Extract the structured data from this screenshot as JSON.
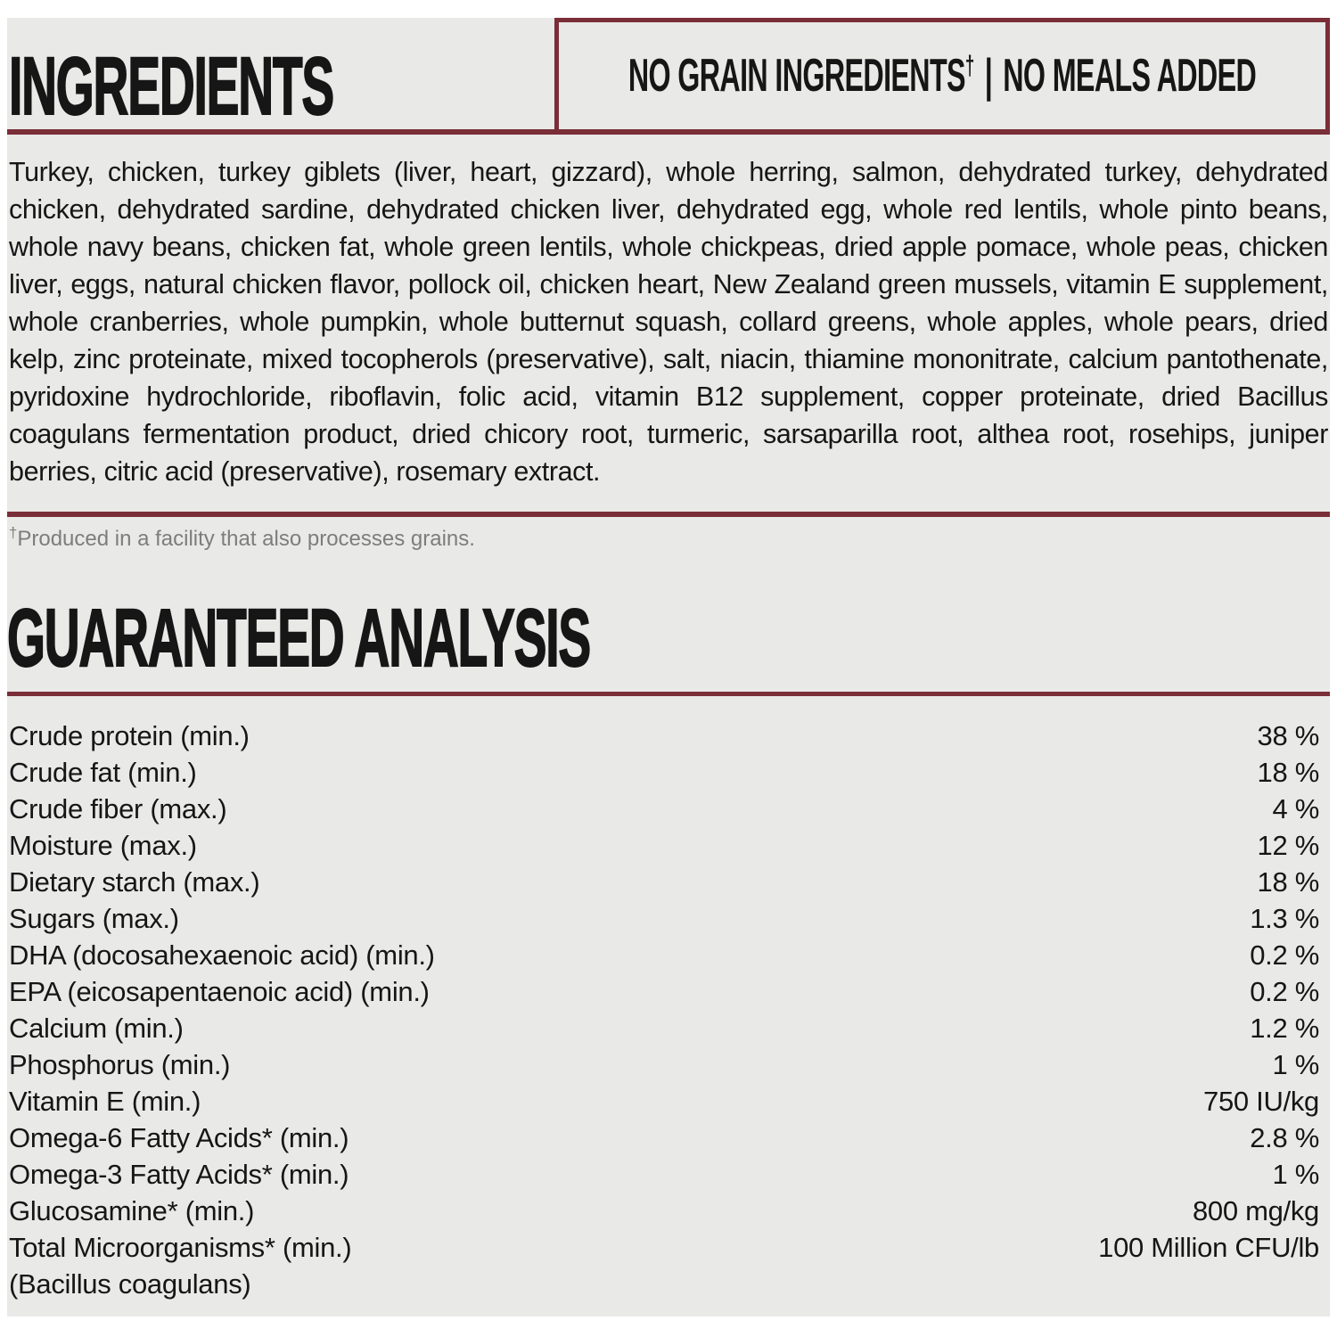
{
  "page": {
    "accent_color": "#7a2e37",
    "panel_background": "#e9e9e7",
    "text_color": "#161616",
    "footnote_color": "#7d7d7d",
    "page_background": "#ffffff"
  },
  "header": {
    "title": "INGREDIENTS",
    "badge": {
      "text_left": "NO GRAIN INGREDIENTS",
      "dagger": "†",
      "separator": "|",
      "text_right": "NO MEALS ADDED"
    }
  },
  "ingredients": {
    "text": "Turkey, chicken, turkey giblets (liver, heart, gizzard), whole herring, salmon, dehydrated turkey, dehydrated chicken, dehydrated sardine, dehydrated chicken liver, dehydrated egg, whole red lentils, whole pinto beans, whole navy beans, chicken fat, whole green lentils, whole chickpeas, dried apple pomace, whole peas, chicken liver, eggs, natural chicken flavor, pollock oil, chicken heart, New Zealand green mussels, vitamin E supplement, whole cranberries, whole pumpkin, whole butternut squash, collard greens, whole apples, whole pears, dried kelp, zinc proteinate, mixed tocopherols (preservative), salt, niacin, thiamine mononitrate, calcium pantothenate, pyridoxine hydrochloride, riboflavin, folic acid, vitamin B12 supplement, copper proteinate, dried Bacillus coagulans fermentation product, dried chicory root, turmeric, sarsaparilla root, althea root, rosehips, juniper berries, citric acid (preservative), rosemary extract."
  },
  "footnote": {
    "dagger": "†",
    "text": "Produced in a facility that also processes grains."
  },
  "analysis": {
    "title": "GUARANTEED ANALYSIS",
    "rows": [
      {
        "label": "Crude protein (min.)",
        "value": "38 %"
      },
      {
        "label": "Crude fat (min.)",
        "value": "18 %"
      },
      {
        "label": "Crude fiber (max.)",
        "value": "4 %"
      },
      {
        "label": "Moisture (max.)",
        "value": "12 %"
      },
      {
        "label": "Dietary starch (max.)",
        "value": "18 %"
      },
      {
        "label": "Sugars (max.)",
        "value": "1.3 %"
      },
      {
        "label": "DHA (docosahexaenoic acid) (min.)",
        "value": "0.2 %"
      },
      {
        "label": "EPA (eicosapentaenoic acid) (min.)",
        "value": "0.2 %"
      },
      {
        "label": "Calcium (min.)",
        "value": "1.2 %"
      },
      {
        "label": "Phosphorus (min.)",
        "value": "1 %"
      },
      {
        "label": "Vitamin E (min.)",
        "value": "750 IU/kg"
      },
      {
        "label": "Omega-6 Fatty Acids* (min.)",
        "value": "2.8 %"
      },
      {
        "label": "Omega-3 Fatty Acids* (min.)",
        "value": "1 %"
      },
      {
        "label": "Glucosamine* (min.)",
        "value": "800 mg/kg"
      },
      {
        "label": "Total Microorganisms* (min.)",
        "value": "100 Million CFU/lb"
      },
      {
        "label": "(Bacillus coagulans)",
        "value": ""
      }
    ]
  }
}
